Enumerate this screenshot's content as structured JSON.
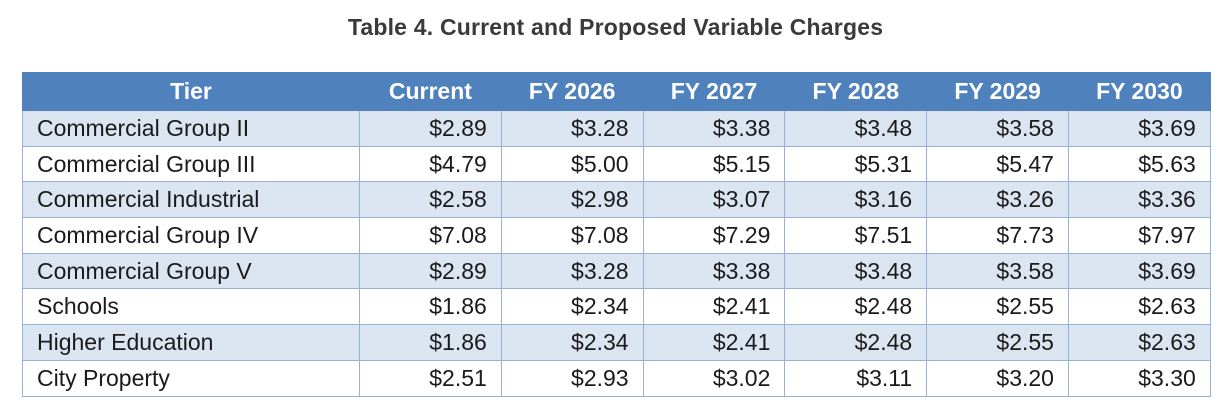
{
  "title": "Table 4. Current and Proposed Variable Charges",
  "headers": [
    "Tier",
    "Current",
    "FY 2026",
    "FY 2027",
    "FY 2028",
    "FY 2029",
    "FY 2030"
  ],
  "rows": [
    {
      "tier": "Commercial Group II",
      "values": [
        "$2.89",
        "$3.28",
        "$3.38",
        "$3.48",
        "$3.58",
        "$3.69"
      ]
    },
    {
      "tier": "Commercial Group III",
      "values": [
        "$4.79",
        "$5.00",
        "$5.15",
        "$5.31",
        "$5.47",
        "$5.63"
      ]
    },
    {
      "tier": "Commercial Industrial",
      "values": [
        "$2.58",
        "$2.98",
        "$3.07",
        "$3.16",
        "$3.26",
        "$3.36"
      ]
    },
    {
      "tier": "Commercial Group IV",
      "values": [
        "$7.08",
        "$7.08",
        "$7.29",
        "$7.51",
        "$7.73",
        "$7.97"
      ]
    },
    {
      "tier": "Commercial Group V",
      "values": [
        "$2.89",
        "$3.28",
        "$3.38",
        "$3.48",
        "$3.58",
        "$3.69"
      ]
    },
    {
      "tier": "Schools",
      "values": [
        "$1.86",
        "$2.34",
        "$2.41",
        "$2.48",
        "$2.55",
        "$2.63"
      ]
    },
    {
      "tier": "Higher Education",
      "values": [
        "$1.86",
        "$2.34",
        "$2.41",
        "$2.48",
        "$2.55",
        "$2.63"
      ]
    },
    {
      "tier": "City Property",
      "values": [
        "$2.51",
        "$2.93",
        "$3.02",
        "$3.11",
        "$3.20",
        "$3.30"
      ]
    }
  ],
  "colors": {
    "header_bg": "#4f81bd",
    "header_text": "#ffffff",
    "band_bg": "#dbe5f1",
    "border": "#95b3d7"
  }
}
